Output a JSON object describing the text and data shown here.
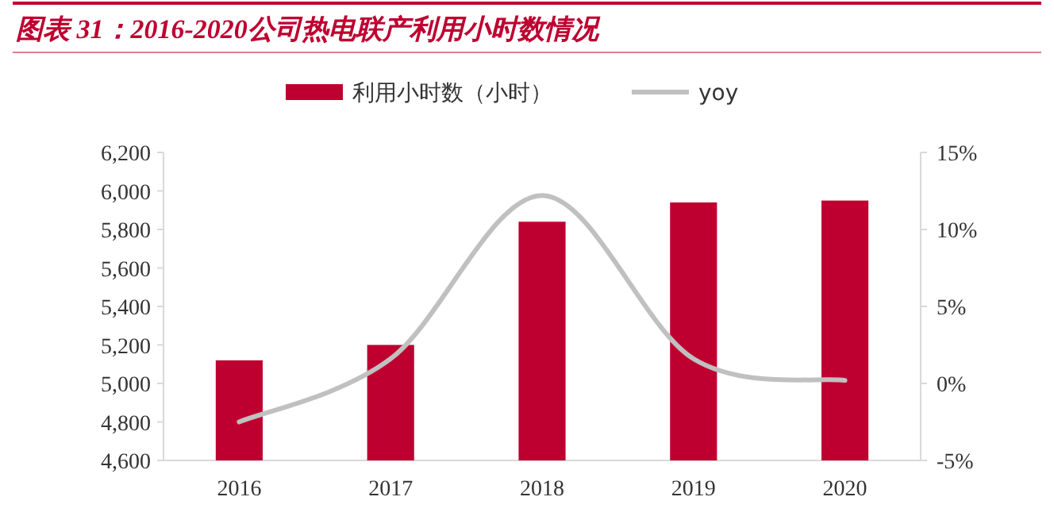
{
  "chart_data": {
    "type": "bar",
    "title": "图表 31：2016-2020公司热电联产利用小时数情况",
    "categories": [
      "2016",
      "2017",
      "2018",
      "2019",
      "2020"
    ],
    "series": [
      {
        "name": "利用小时数（小时）",
        "color": "#be0030",
        "values": [
          5120,
          5200,
          5840,
          5940,
          5950
        ]
      },
      {
        "name": "yoy",
        "type": "line",
        "axis": "y2",
        "color": "#c0c0c0",
        "values": [
          -2.5,
          1.6,
          12.2,
          1.6,
          0.2
        ]
      }
    ],
    "ylim": [
      4600,
      6200
    ],
    "yticks": [
      {
        "value": 4600,
        "label": "4,600"
      },
      {
        "value": 4800,
        "label": "4,800"
      },
      {
        "value": 5000,
        "label": "5,000"
      },
      {
        "value": 5200,
        "label": "5,200"
      },
      {
        "value": 5400,
        "label": "5,400"
      },
      {
        "value": 5600,
        "label": "5,600"
      },
      {
        "value": 5800,
        "label": "5,800"
      },
      {
        "value": 6000,
        "label": "6,000"
      },
      {
        "value": 6200,
        "label": "6,200"
      }
    ],
    "y2lim": [
      -5,
      15
    ],
    "y2ticks": [
      {
        "value": -5,
        "label": "-5%"
      },
      {
        "value": 0,
        "label": "0%"
      },
      {
        "value": 5,
        "label": "5%"
      },
      {
        "value": 10,
        "label": "10%"
      },
      {
        "value": 15,
        "label": "15%"
      }
    ],
    "legend": "top",
    "grid": false
  }
}
